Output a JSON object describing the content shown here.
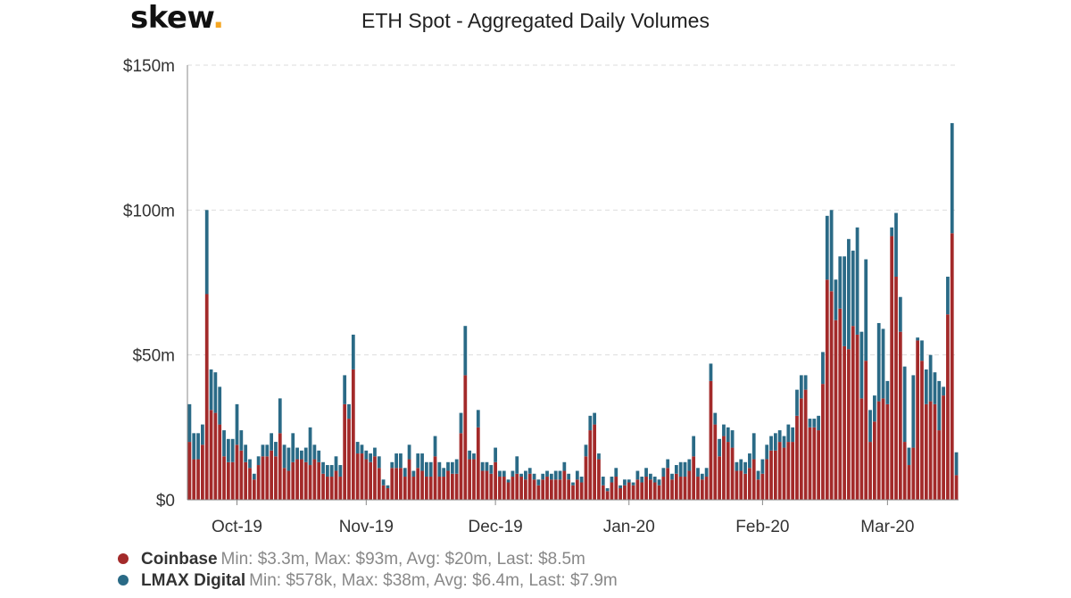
{
  "brand": {
    "logo_text": "skew",
    "logo_dot": "."
  },
  "chart_data": {
    "type": "bar",
    "stacked": true,
    "title": "ETH Spot - Aggregated Daily Volumes",
    "xlabel": "",
    "ylabel": "",
    "ylim": [
      0,
      150
    ],
    "y_unit": "$m",
    "y_ticks": [
      {
        "value": 0,
        "label": "$0"
      },
      {
        "value": 50,
        "label": "$50m"
      },
      {
        "value": 100,
        "label": "$100m"
      },
      {
        "value": 150,
        "label": "$150m"
      }
    ],
    "x_ticks": [
      {
        "index": 11,
        "label": "Oct-19"
      },
      {
        "index": 41,
        "label": "Nov-19"
      },
      {
        "index": 71,
        "label": "Dec-19"
      },
      {
        "index": 102,
        "label": "Jan-20"
      },
      {
        "index": 133,
        "label": "Feb-20"
      },
      {
        "index": 162,
        "label": "Mar-20"
      }
    ],
    "grid": "horizontal-dashed",
    "series": [
      {
        "name": "Coinbase",
        "color": "#a32a2a",
        "values": [
          20,
          14,
          14,
          19,
          71,
          31,
          30,
          26,
          15,
          13,
          13,
          19,
          17,
          13,
          11,
          7,
          12,
          15,
          15,
          17,
          15,
          23,
          11,
          10,
          13,
          14,
          14,
          13,
          12,
          14,
          13,
          9,
          8,
          8,
          10,
          8,
          33,
          28,
          45,
          16,
          16,
          14,
          13,
          15,
          11,
          5,
          4,
          11,
          11,
          11,
          8,
          14,
          8,
          11,
          10,
          8,
          8,
          15,
          8,
          8,
          10,
          9,
          9,
          23,
          43,
          14,
          14,
          25,
          10,
          10,
          9,
          13,
          8,
          8,
          6,
          8,
          9,
          8,
          7,
          9,
          7,
          5,
          7,
          8,
          7,
          7,
          7,
          10,
          7,
          5,
          7,
          6,
          15,
          24,
          26,
          14,
          5,
          3,
          6,
          8,
          4,
          5,
          6,
          5,
          7,
          6,
          8,
          7,
          6,
          5,
          8,
          11,
          7,
          9,
          8,
          8,
          10,
          15,
          8,
          7,
          8,
          41,
          26,
          15,
          22,
          20,
          18,
          10,
          10,
          9,
          11,
          14,
          7,
          9,
          14,
          17,
          17,
          20,
          18,
          20,
          20,
          29,
          35,
          38,
          25,
          25,
          24,
          40,
          76,
          72,
          62,
          66,
          53,
          52,
          60,
          57,
          35,
          48,
          20,
          27,
          34,
          35,
          33,
          91,
          77,
          58,
          20,
          12,
          18,
          55,
          48,
          33,
          34,
          33,
          24,
          36,
          64,
          92,
          8.5
        ]
      },
      {
        "name": "LMAX Digital",
        "color": "#2a6a86",
        "values": [
          13,
          9,
          9,
          7,
          29,
          14,
          14,
          13,
          9,
          8,
          8,
          14,
          7,
          6,
          3,
          2,
          3,
          4,
          4,
          6,
          5,
          12,
          8,
          8,
          10,
          4,
          3,
          5,
          13,
          5,
          4,
          4,
          4,
          4,
          5,
          4,
          10,
          5,
          12,
          4,
          3,
          3,
          3,
          3,
          4,
          2,
          1,
          2,
          5,
          5,
          3,
          5,
          2,
          5,
          6,
          5,
          5,
          7,
          5,
          3,
          3,
          4,
          5,
          7,
          17,
          3,
          2,
          6,
          3,
          3,
          3,
          5,
          2,
          2,
          1,
          2,
          6,
          1,
          3,
          2,
          2,
          2,
          2,
          2,
          2,
          3,
          3,
          3,
          2,
          1,
          3,
          2,
          4,
          5,
          4,
          2,
          3,
          1,
          2,
          3,
          1,
          2,
          1,
          1,
          3,
          2,
          3,
          2,
          2,
          2,
          3,
          3,
          2,
          3,
          5,
          5,
          4,
          7,
          3,
          2,
          3,
          6,
          4,
          6,
          4,
          5,
          6,
          3,
          4,
          4,
          5,
          9,
          3,
          5,
          5,
          5,
          6,
          4,
          4,
          6,
          5,
          9,
          8,
          5,
          3,
          3,
          5,
          11,
          22,
          28,
          14,
          18,
          31,
          38,
          26,
          37,
          23,
          35,
          11,
          9,
          27,
          24,
          8,
          3,
          22,
          12,
          26,
          6,
          25,
          1,
          7,
          12,
          16,
          11,
          17,
          3,
          13,
          38,
          7.9
        ]
      }
    ],
    "legend": [
      {
        "name": "Coinbase",
        "stats": "Min: $3.3m, Max: $93m, Avg: $20m, Last: $8.5m"
      },
      {
        "name": "LMAX Digital",
        "stats": "Min: $578k, Max: $38m, Avg: $6.4m, Last: $7.9m"
      }
    ]
  }
}
